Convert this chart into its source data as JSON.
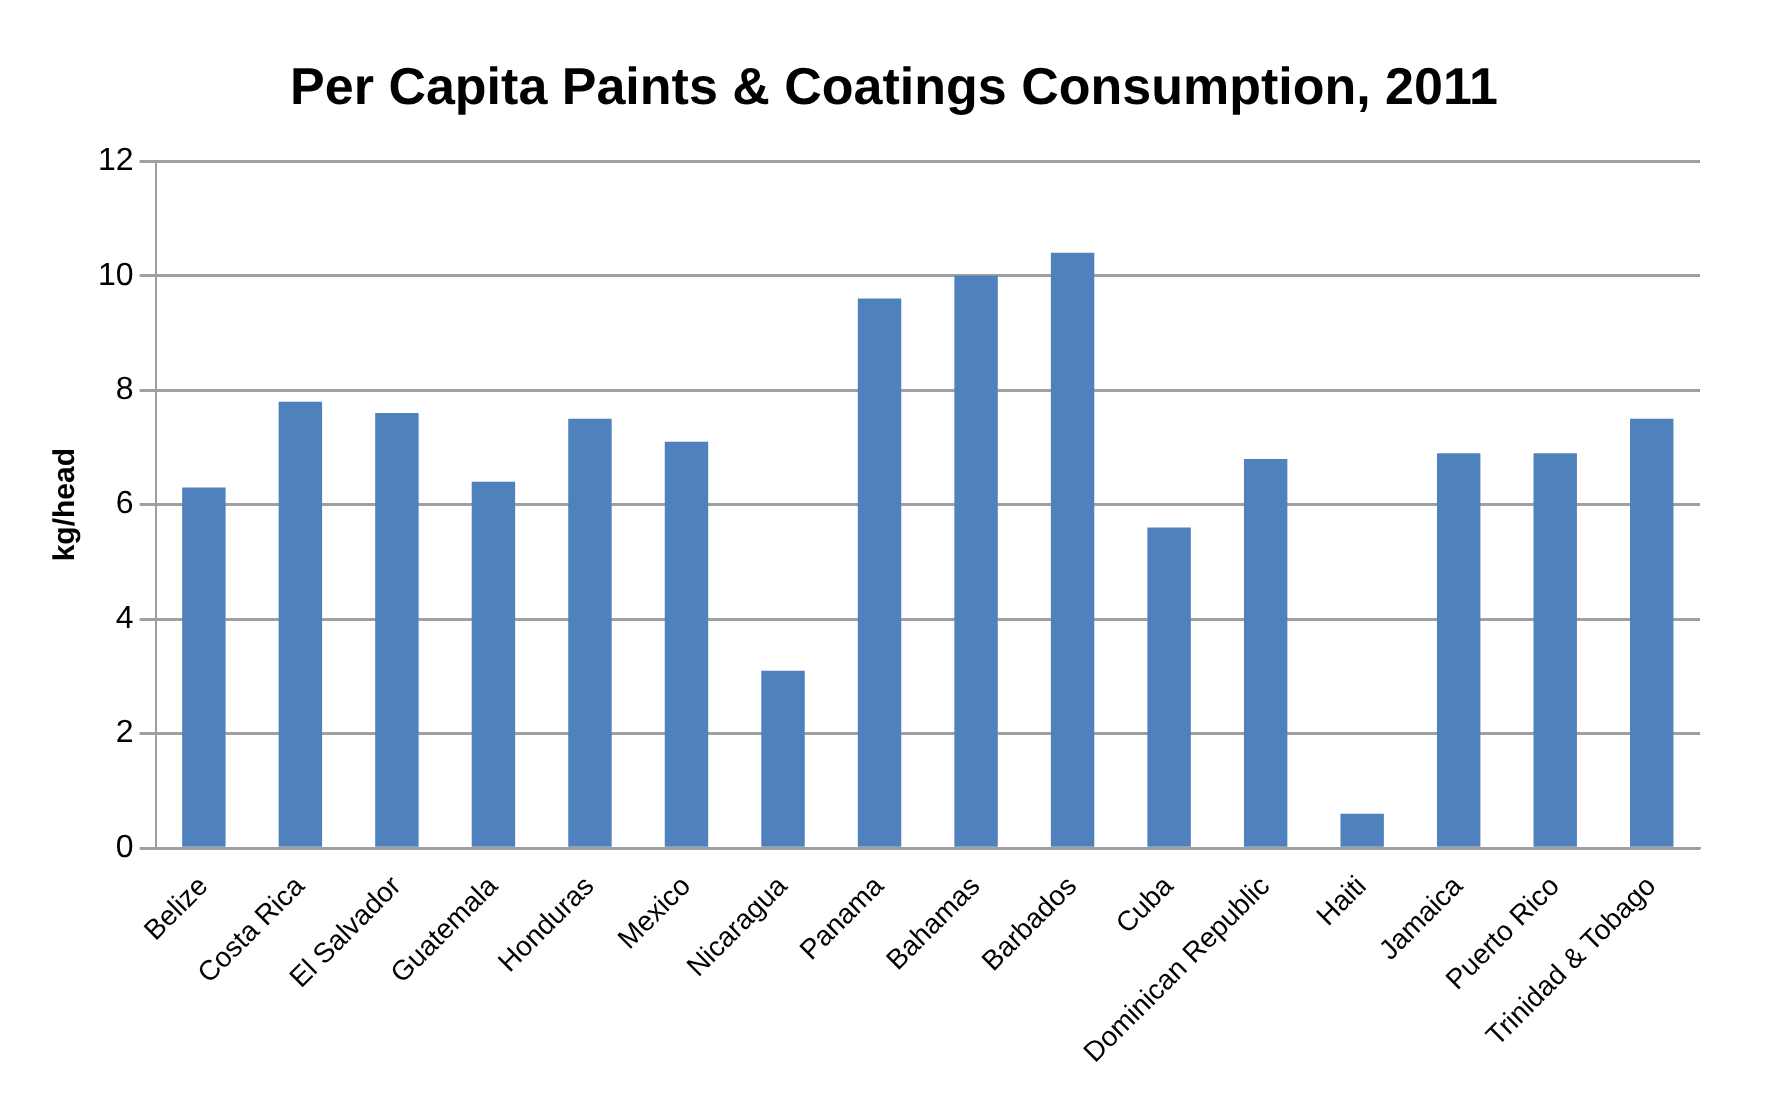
{
  "chart_data": {
    "type": "bar",
    "title": "Per Capita Paints & Coatings Consumption, 2011",
    "ylabel": "kg/head",
    "categories": [
      "Belize",
      "Costa Rica",
      "El Salvador",
      "Guatemala",
      "Honduras",
      "Mexico",
      "Nicaragua",
      "Panama",
      "Bahamas",
      "Barbados",
      "Cuba",
      "Dominican Republic",
      "Haiti",
      "Jamaica",
      "Puerto Rico",
      "Trinidad & Tobago"
    ],
    "values": [
      6.3,
      7.8,
      7.6,
      6.4,
      7.5,
      7.1,
      3.1,
      9.6,
      10.0,
      10.4,
      5.6,
      6.8,
      0.6,
      6.9,
      6.9,
      7.5
    ],
    "color": "#4f81bd",
    "ylim": [
      0,
      12
    ],
    "yticks": [
      0,
      2,
      4,
      6,
      8,
      10,
      12
    ],
    "grid": "y",
    "legend": false
  }
}
